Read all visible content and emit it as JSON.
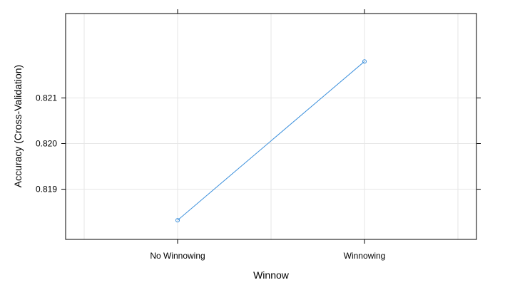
{
  "chart_data": {
    "type": "line",
    "categories": [
      "No Winnowing",
      "Winnowing"
    ],
    "series": [
      {
        "values": [
          0.81832,
          0.8218
        ],
        "color": "#3a8fdc"
      }
    ],
    "xlabel": "Winnow",
    "ylabel": "Accuracy (Cross-Validation)",
    "yticks": [
      0.819,
      0.82,
      0.821
    ],
    "ytick_labels": [
      "0.819",
      "0.820",
      "0.821"
    ],
    "ylim": [
      0.8179,
      0.82285
    ],
    "grid": true,
    "grid_color": "#e6e6e6",
    "legend": "none"
  }
}
